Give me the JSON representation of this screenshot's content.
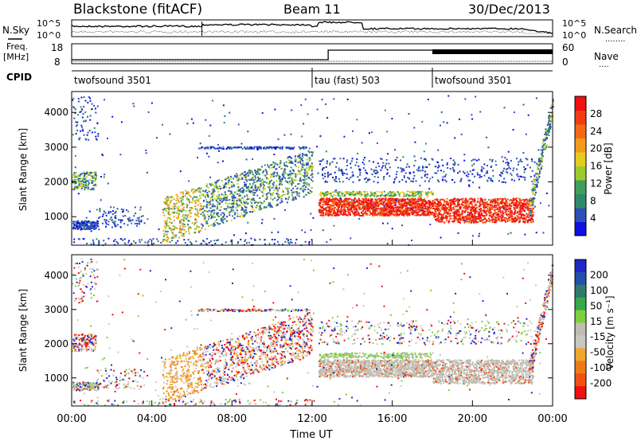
{
  "header": {
    "station": "Blackstone (fitACF)",
    "beam": "Beam 11",
    "date": "30/Dec/2013"
  },
  "noise_panel": {
    "left_label": "N.Sky",
    "right_label": "N.Search",
    "right_dots": "........",
    "tick_top": "10^5",
    "tick_bottom": "10^0"
  },
  "freq_panel": {
    "left_label_1": "Freq.",
    "left_label_2": "[MHz]",
    "right_label": "Nave",
    "right_dots": "....",
    "left_ticks": [
      "18",
      "8"
    ],
    "right_ticks": [
      "60",
      "0"
    ]
  },
  "cpid_panel": {
    "label": "CPID",
    "segments": [
      {
        "name": "twofsound 3501",
        "start_hour": 0,
        "end_hour": 12.0
      },
      {
        "name": "tau (fast) 503",
        "start_hour": 12.0,
        "end_hour": 18.0
      },
      {
        "name": "twofsound 3501",
        "start_hour": 18.0,
        "end_hour": 24
      }
    ]
  },
  "chart_data": [
    {
      "type": "heatmap",
      "name": "power",
      "ylabel": "Slant Range [km]",
      "y_ticks": [
        "1000",
        "2000",
        "3000",
        "4000"
      ],
      "y_tick_values": [
        1000,
        2000,
        3000,
        4000
      ],
      "ylim": [
        180,
        4600
      ],
      "colorbar_label": "Power [dB]",
      "colorbar_ticks": [
        "4",
        "8",
        "12",
        "16",
        "20",
        "24",
        "28"
      ],
      "colors": [
        "#1010e0",
        "#2d50b8",
        "#2f8a6c",
        "#3fa05a",
        "#9ccc2c",
        "#e6cc1c",
        "#f39a1c",
        "#f36a16",
        "#f23c12",
        "#f01010"
      ]
    },
    {
      "type": "heatmap",
      "name": "velocity",
      "ylabel": "Slant Range [km]",
      "y_ticks": [
        "1000",
        "2000",
        "3000",
        "4000"
      ],
      "y_tick_values": [
        1000,
        2000,
        3000,
        4000
      ],
      "ylim": [
        180,
        4600
      ],
      "colorbar_label": "Velocity [m s⁻¹]",
      "colorbar_ticks": [
        "200",
        "100",
        "50",
        "15",
        "-15",
        "-50",
        "-100",
        "-200"
      ],
      "colors": [
        "#1e28c8",
        "#2450a8",
        "#2e7a6a",
        "#38a848",
        "#7cd03c",
        "#bebeb4",
        "#c8c8c0",
        "#f0a82c",
        "#f07a18",
        "#f05014",
        "#f01010"
      ],
      "xlabel": "Time UT",
      "x_ticks": [
        "00:00",
        "04:00",
        "08:00",
        "12:00",
        "16:00",
        "20:00",
        "00:00"
      ],
      "x_tick_hours": [
        0,
        4,
        8,
        12,
        16,
        20,
        24
      ]
    }
  ]
}
